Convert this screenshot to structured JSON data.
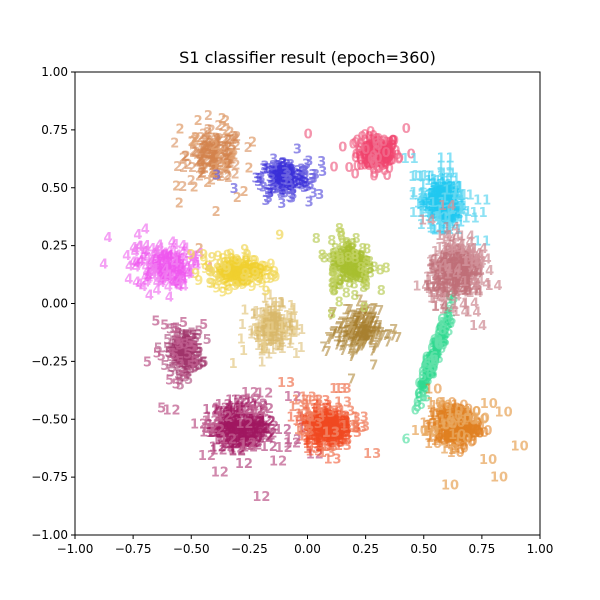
{
  "chart_data": {
    "type": "scatter",
    "title": "S1 classifier result (epoch=360)",
    "xlabel": "",
    "ylabel": "",
    "xlim": [
      -1.0,
      1.0
    ],
    "ylim": [
      -1.0,
      1.0
    ],
    "x_ticks": [
      "−1.00",
      "−0.75",
      "−0.50",
      "−0.25",
      "0.00",
      "0.25",
      "0.50",
      "0.75",
      "1.00"
    ],
    "y_ticks": [
      "−1.00",
      "−0.75",
      "−0.50",
      "−0.25",
      "0.00",
      "0.25",
      "0.50",
      "0.75",
      "1.00"
    ],
    "grid": false,
    "marker": "class label digit",
    "series": [
      {
        "label": "0",
        "color": "#f0446e",
        "label_color": "#f07090",
        "center": [
          0.3,
          0.63
        ],
        "spread": [
          0.06,
          0.05
        ]
      },
      {
        "label": "1",
        "color": "#d8b86a",
        "label_color": "#e5cc8c",
        "center": [
          -0.15,
          -0.12
        ],
        "spread": [
          0.06,
          0.06
        ]
      },
      {
        "label": "2",
        "color": "#d4844c",
        "label_color": "#e0a070",
        "center": [
          -0.4,
          0.62
        ],
        "spread": [
          0.08,
          0.07
        ]
      },
      {
        "label": "3",
        "color": "#3b30d8",
        "label_color": "#7068e0",
        "center": [
          -0.1,
          0.52
        ],
        "spread": [
          0.07,
          0.05
        ]
      },
      {
        "label": "4",
        "color": "#ee55ee",
        "label_color": "#f080f0",
        "center": [
          -0.62,
          0.14
        ],
        "spread": [
          0.08,
          0.06
        ]
      },
      {
        "label": "5",
        "color": "#a0346c",
        "label_color": "#c06090",
        "center": [
          -0.53,
          -0.23
        ],
        "spread": [
          0.05,
          0.06
        ]
      },
      {
        "label": "6",
        "color": "#30d890",
        "label_color": "#60e0a8",
        "center": [
          0.54,
          -0.26
        ],
        "spread": [
          0.02,
          0.09
        ]
      },
      {
        "label": "7",
        "color": "#a88030",
        "label_color": "#c0a060",
        "center": [
          0.22,
          -0.14
        ],
        "spread": [
          0.06,
          0.06
        ]
      },
      {
        "label": "8",
        "color": "#a8c030",
        "label_color": "#c0d060",
        "center": [
          0.19,
          0.15
        ],
        "spread": [
          0.06,
          0.07
        ]
      },
      {
        "label": "9",
        "color": "#f0d030",
        "label_color": "#f0d860",
        "center": [
          -0.3,
          0.12
        ],
        "spread": [
          0.08,
          0.04
        ]
      },
      {
        "label": "10",
        "color": "#e08020",
        "label_color": "#e8a860",
        "center": [
          0.63,
          -0.55
        ],
        "spread": [
          0.06,
          0.06
        ]
      },
      {
        "label": "11",
        "color": "#20c8f0",
        "label_color": "#68d8f0",
        "center": [
          0.58,
          0.42
        ],
        "spread": [
          0.05,
          0.07
        ]
      },
      {
        "label": "12",
        "color": "#a01860",
        "label_color": "#c06090",
        "center": [
          -0.28,
          -0.55
        ],
        "spread": [
          0.09,
          0.07
        ]
      },
      {
        "label": "13",
        "color": "#f04820",
        "label_color": "#f08060",
        "center": [
          0.08,
          -0.55
        ],
        "spread": [
          0.06,
          0.06
        ]
      },
      {
        "label": "14",
        "color": "#c07078",
        "label_color": "#d09098",
        "center": [
          0.64,
          0.11
        ],
        "spread": [
          0.07,
          0.08
        ]
      }
    ]
  }
}
